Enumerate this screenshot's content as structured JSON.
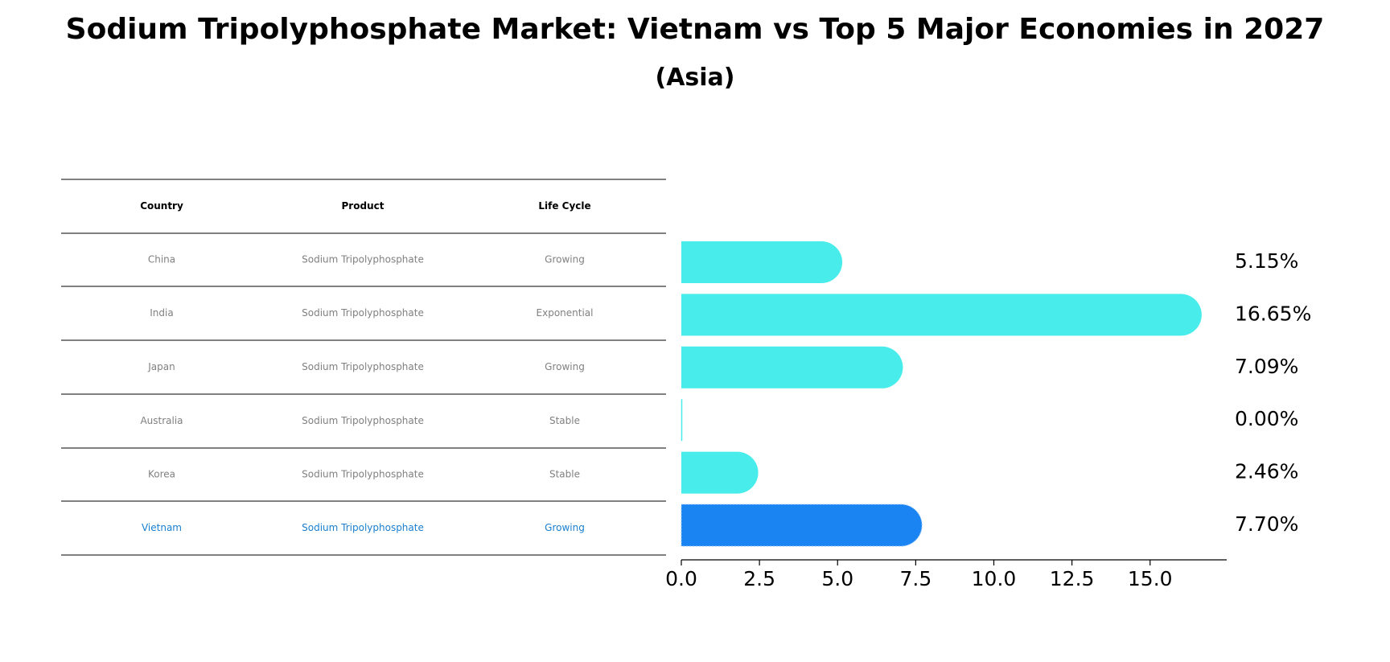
{
  "chart_data": {
    "type": "bar",
    "orientation": "horizontal",
    "title": "Sodium Tripolyphosphate Market: Vietnam vs Top 5 Major Economies in 2027",
    "subtitle": "(Asia)",
    "table": {
      "columns": [
        "Country",
        "Product",
        "Life Cycle"
      ],
      "rows": [
        [
          "China",
          "Sodium Tripolyphosphate",
          "Growing"
        ],
        [
          "India",
          "Sodium Tripolyphosphate",
          "Exponential"
        ],
        [
          "Japan",
          "Sodium Tripolyphosphate",
          "Growing"
        ],
        [
          "Australia",
          "Sodium Tripolyphosphate",
          "Stable"
        ],
        [
          "Korea",
          "Sodium Tripolyphosphate",
          "Stable"
        ],
        [
          "Vietnam",
          "Sodium Tripolyphosphate",
          "Growing"
        ]
      ]
    },
    "categories": [
      "China",
      "India",
      "Japan",
      "Australia",
      "Korea",
      "Vietnam"
    ],
    "values": [
      5.15,
      16.65,
      7.09,
      0.0,
      2.46,
      7.7
    ],
    "value_labels": [
      "5.15%",
      "16.65%",
      "7.09%",
      "0.00%",
      "2.46%",
      "7.70%"
    ],
    "highlight": "Vietnam",
    "xlim": [
      0,
      17.5
    ],
    "xticks": [
      0,
      2.5,
      5,
      7.5,
      10,
      12.5,
      15
    ],
    "xtick_labels": [
      "0.0",
      "2.5",
      "5.0",
      "7.5",
      "10.0",
      "12.5",
      "15.0"
    ],
    "colors": {
      "bar": "#48ECEA",
      "highlight_bar": "#1A84F2",
      "row_text": "#808080",
      "highlight_text": "#1A7FCF"
    }
  }
}
